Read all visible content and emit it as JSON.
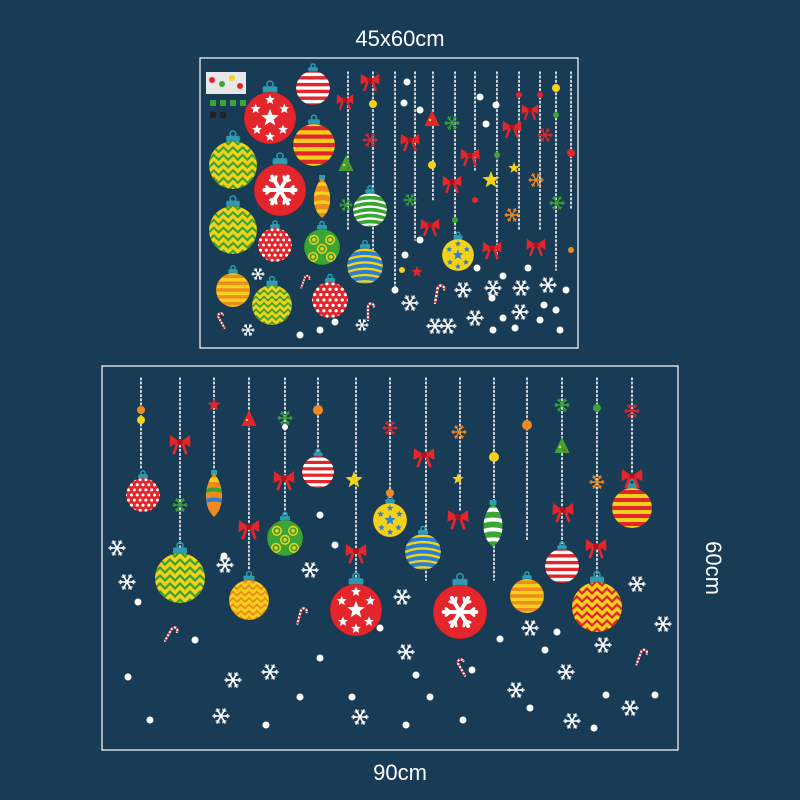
{
  "labels": {
    "sheet_small_size": "45x60cm",
    "sheet_large_width": "90cm",
    "sheet_large_height": "60cm"
  },
  "colors": {
    "background": "#193c56",
    "border": "#ffffff",
    "red": "#e3262b",
    "yellow": "#f5d21a",
    "green": "#3aa535",
    "orange": "#f08a1e",
    "blue": "#2b7fd1",
    "white": "#ffffff"
  },
  "icons": [
    "bauble-icon",
    "bow-icon",
    "star-icon",
    "snowflake-icon",
    "candy-cane-icon",
    "tree-icon",
    "dot-icon"
  ]
}
